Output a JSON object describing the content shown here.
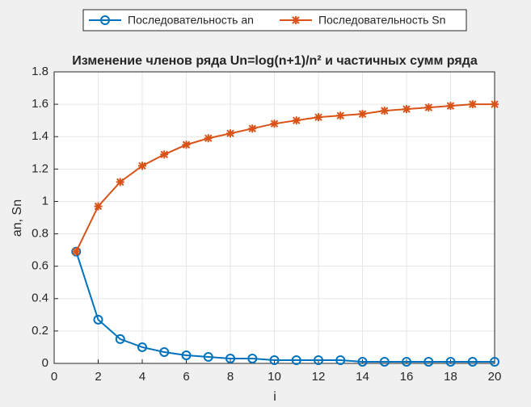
{
  "chart_data": {
    "type": "line",
    "title": "Изменение членов ряда  Un=log(n+1)/n² и частичных сумм ряда",
    "xlabel": "i",
    "ylabel": "an, Sn",
    "x": [
      1,
      2,
      3,
      4,
      5,
      6,
      7,
      8,
      9,
      10,
      11,
      12,
      13,
      14,
      15,
      16,
      17,
      18,
      19,
      20
    ],
    "series": [
      {
        "name": "Последовательность an",
        "color": "#0072bd",
        "marker": "o",
        "values": [
          0.69,
          0.27,
          0.15,
          0.1,
          0.07,
          0.05,
          0.04,
          0.03,
          0.03,
          0.02,
          0.02,
          0.02,
          0.02,
          0.01,
          0.01,
          0.01,
          0.01,
          0.01,
          0.01,
          0.01
        ]
      },
      {
        "name": "Последовательность Sn",
        "color": "#d95319",
        "marker": "*",
        "values": [
          0.69,
          0.97,
          1.12,
          1.22,
          1.29,
          1.35,
          1.39,
          1.42,
          1.45,
          1.48,
          1.5,
          1.52,
          1.53,
          1.54,
          1.56,
          1.57,
          1.58,
          1.59,
          1.6,
          1.6
        ]
      }
    ],
    "xlim": [
      0,
      20
    ],
    "xticks": [
      0,
      2,
      4,
      6,
      8,
      10,
      12,
      14,
      16,
      18,
      20
    ],
    "ylim": [
      0,
      1.8
    ],
    "yticks": [
      0,
      0.2,
      0.4,
      0.6,
      0.8,
      1,
      1.2,
      1.4,
      1.6,
      1.8
    ],
    "grid": true,
    "legend": "top"
  }
}
